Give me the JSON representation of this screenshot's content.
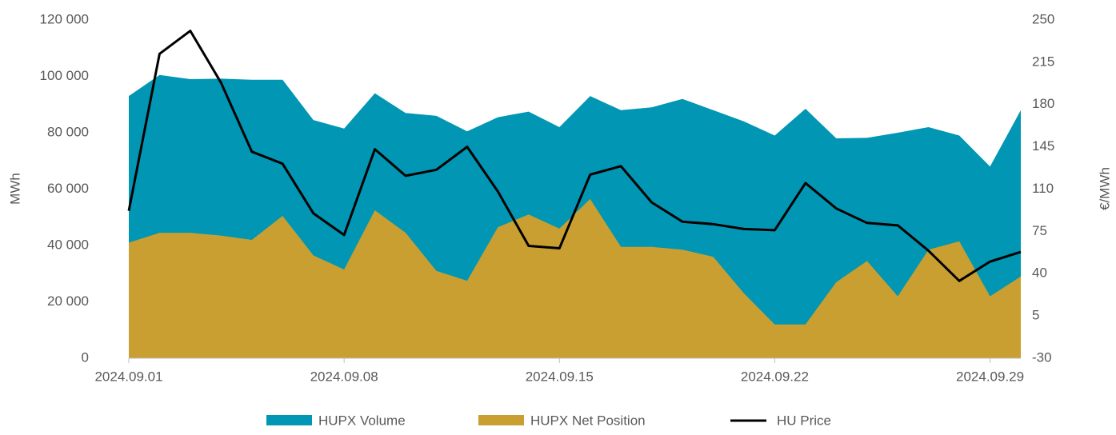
{
  "chart_data": {
    "type": "area",
    "x": [
      "2024.09.01",
      "2024.09.02",
      "2024.09.03",
      "2024.09.04",
      "2024.09.05",
      "2024.09.06",
      "2024.09.07",
      "2024.09.08",
      "2024.09.09",
      "2024.09.10",
      "2024.09.11",
      "2024.09.12",
      "2024.09.13",
      "2024.09.14",
      "2024.09.15",
      "2024.09.16",
      "2024.09.17",
      "2024.09.18",
      "2024.09.19",
      "2024.09.20",
      "2024.09.21",
      "2024.09.22",
      "2024.09.23",
      "2024.09.24",
      "2024.09.25",
      "2024.09.26",
      "2024.09.27",
      "2024.09.28",
      "2024.09.29",
      "2024.09.30"
    ],
    "xticks": [
      "2024.09.01",
      "2024.09.08",
      "2024.09.15",
      "2024.09.22",
      "2024.09.29"
    ],
    "ylabel": "MWh",
    "y2label": "€/MWh",
    "ylim": [
      0,
      120000
    ],
    "yticks": [
      0,
      {
        "value": 20000,
        "label": "20 000"
      },
      {
        "value": 40000,
        "label": "40 000"
      },
      {
        "value": 60000,
        "label": "60 000"
      },
      {
        "value": 80000,
        "label": "80 000"
      },
      {
        "value": 100000,
        "label": "100 000"
      },
      {
        "value": 120000,
        "label": "120 000"
      }
    ],
    "y2lim": [
      -30,
      250
    ],
    "y2ticks": [
      -30,
      5,
      40,
      75,
      110,
      145,
      180,
      215,
      250
    ],
    "legend": "bottom",
    "series": [
      {
        "name": "HUPX Volume",
        "color": "#0096b4",
        "kind": "area",
        "values": [
          93000,
          100500,
          99000,
          99200,
          98800,
          98800,
          84500,
          81500,
          94000,
          87000,
          86000,
          80500,
          85500,
          87500,
          82000,
          93000,
          88000,
          89000,
          92000,
          88000,
          84000,
          79000,
          88500,
          78000,
          78200,
          80000,
          82000,
          79000,
          68000,
          88000
        ]
      },
      {
        "name": "HUPX Net Position",
        "color": "#c89f30",
        "kind": "area",
        "values": [
          41000,
          44500,
          44500,
          43500,
          42000,
          50500,
          36500,
          31500,
          52500,
          44500,
          31000,
          27500,
          46500,
          51000,
          46000,
          56500,
          39500,
          39500,
          38500,
          36000,
          23000,
          12000,
          12000,
          27000,
          34500,
          22000,
          38500,
          41500,
          22000,
          29000
        ]
      },
      {
        "name": "HU Price",
        "color": "#000000",
        "kind": "line",
        "axis": "y2",
        "values": [
          92,
          222,
          241,
          198,
          141,
          131,
          90,
          72,
          143,
          121,
          126,
          145,
          108,
          63,
          61,
          122,
          129,
          99,
          83,
          81,
          77,
          76,
          115,
          94,
          82,
          80,
          59,
          34,
          50,
          58
        ]
      }
    ]
  }
}
